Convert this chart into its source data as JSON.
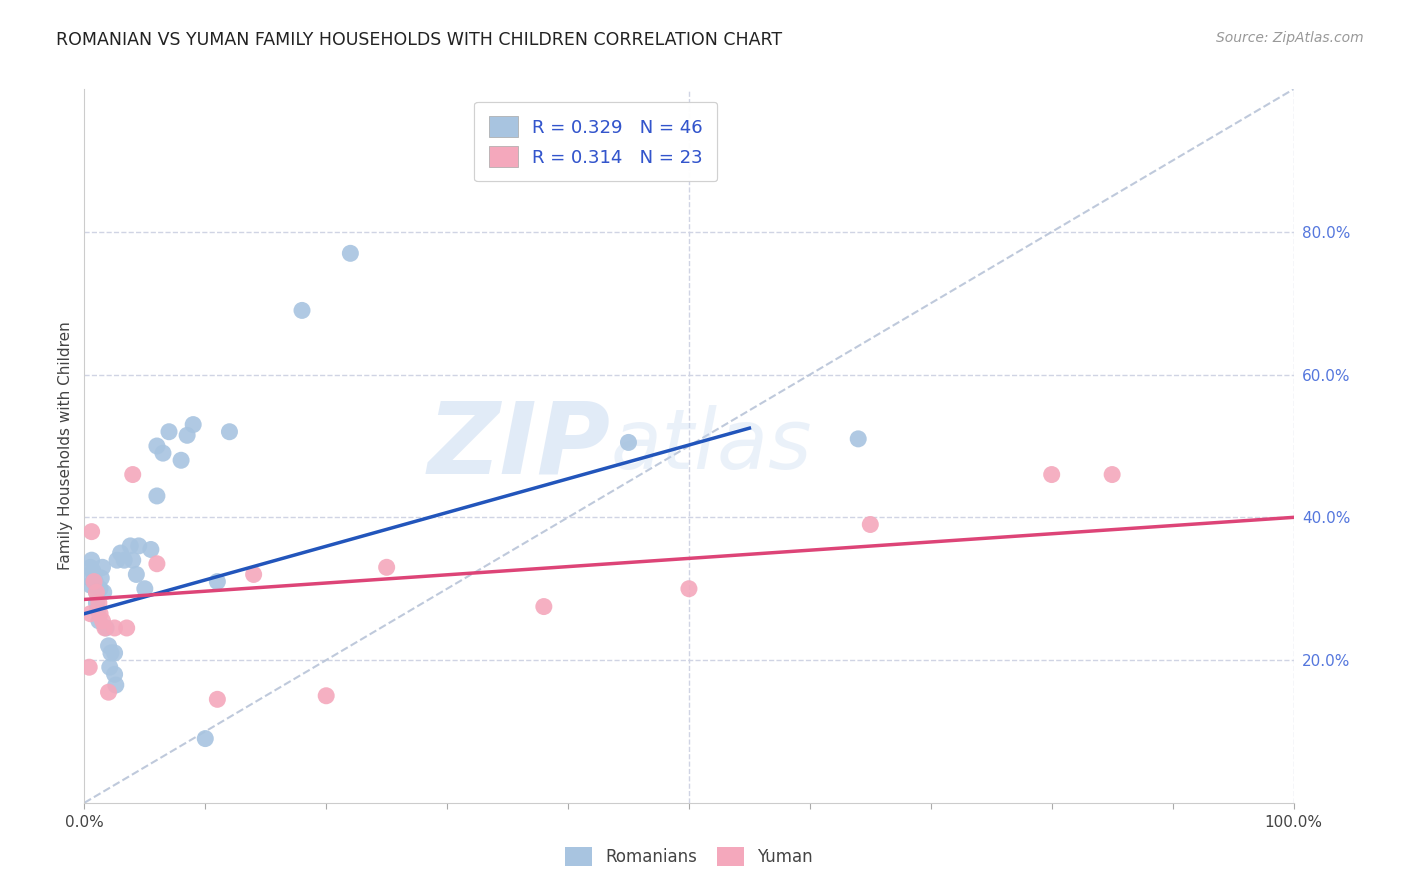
{
  "title": "ROMANIAN VS YUMAN FAMILY HOUSEHOLDS WITH CHILDREN CORRELATION CHART",
  "source": "Source: ZipAtlas.com",
  "ylabel": "Family Households with Children",
  "legend_blue_R": "0.329",
  "legend_blue_N": "46",
  "legend_pink_R": "0.314",
  "legend_pink_N": "23",
  "xlim": [
    0.0,
    1.0
  ],
  "ylim": [
    0.0,
    1.0
  ],
  "xticks": [
    0.0,
    0.1,
    0.2,
    0.3,
    0.4,
    0.5,
    0.6,
    0.7,
    0.8,
    0.9,
    1.0
  ],
  "xticklabels": [
    "0.0%",
    "",
    "",
    "",
    "",
    "",
    "",
    "",
    "",
    "",
    "100.0%"
  ],
  "ytick_vals": [
    0.2,
    0.4,
    0.6,
    0.8
  ],
  "ytick_labels": [
    "20.0%",
    "40.0%",
    "60.0%",
    "80.0%"
  ],
  "blue_color": "#a8c4e0",
  "pink_color": "#f4a8bc",
  "blue_line_color": "#2255bb",
  "pink_line_color": "#dd4477",
  "diagonal_color": "#b8c4d8",
  "background_color": "#ffffff",
  "grid_color": "#d0d4e4",
  "legend_text_color": "#3355cc",
  "right_tick_color": "#5577dd",
  "blue_scatter_x": [
    0.005,
    0.005,
    0.005,
    0.006,
    0.007,
    0.008,
    0.008,
    0.009,
    0.01,
    0.01,
    0.011,
    0.012,
    0.013,
    0.014,
    0.015,
    0.016,
    0.018,
    0.02,
    0.021,
    0.022,
    0.025,
    0.025,
    0.026,
    0.027,
    0.03,
    0.033,
    0.038,
    0.04,
    0.043,
    0.045,
    0.05,
    0.055,
    0.06,
    0.065,
    0.07,
    0.08,
    0.085,
    0.09,
    0.1,
    0.11,
    0.12,
    0.18,
    0.22,
    0.45,
    0.64,
    0.06
  ],
  "blue_scatter_y": [
    0.305,
    0.315,
    0.33,
    0.34,
    0.325,
    0.31,
    0.32,
    0.31,
    0.295,
    0.28,
    0.27,
    0.255,
    0.3,
    0.315,
    0.33,
    0.295,
    0.245,
    0.22,
    0.19,
    0.21,
    0.18,
    0.21,
    0.165,
    0.34,
    0.35,
    0.34,
    0.36,
    0.34,
    0.32,
    0.36,
    0.3,
    0.355,
    0.43,
    0.49,
    0.52,
    0.48,
    0.515,
    0.53,
    0.09,
    0.31,
    0.52,
    0.69,
    0.77,
    0.505,
    0.51,
    0.5
  ],
  "pink_scatter_x": [
    0.004,
    0.005,
    0.006,
    0.008,
    0.01,
    0.012,
    0.013,
    0.015,
    0.017,
    0.02,
    0.025,
    0.035,
    0.04,
    0.06,
    0.11,
    0.14,
    0.2,
    0.25,
    0.38,
    0.5,
    0.65,
    0.8,
    0.85
  ],
  "pink_scatter_y": [
    0.19,
    0.265,
    0.38,
    0.31,
    0.295,
    0.28,
    0.265,
    0.255,
    0.245,
    0.155,
    0.245,
    0.245,
    0.46,
    0.335,
    0.145,
    0.32,
    0.15,
    0.33,
    0.275,
    0.3,
    0.39,
    0.46,
    0.46
  ],
  "blue_line_x": [
    0.0,
    0.55
  ],
  "blue_line_y": [
    0.265,
    0.525
  ],
  "pink_line_x": [
    0.0,
    1.0
  ],
  "pink_line_y": [
    0.285,
    0.4
  ]
}
